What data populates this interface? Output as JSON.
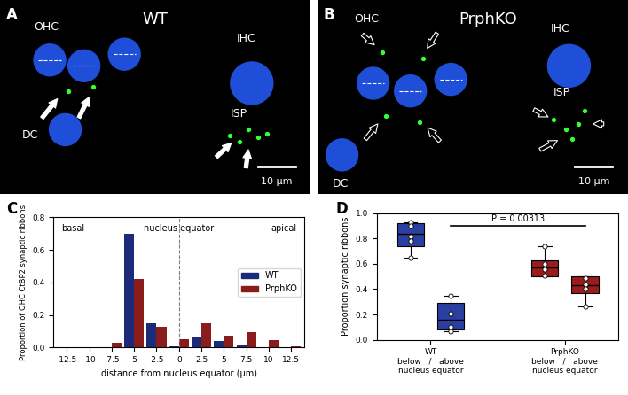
{
  "image_panels": [
    {
      "label": "A",
      "title": "WT",
      "cell_labels": [
        "OHC",
        "IHC",
        "DC",
        "ISP"
      ],
      "scale_bar": "10 μm"
    },
    {
      "label": "B",
      "title": "PrphKO",
      "cell_labels": [
        "OHC",
        "IHC",
        "DC",
        "ISP"
      ],
      "scale_bar": "10 μm"
    }
  ],
  "chart_data": [
    {
      "panel": "C",
      "type": "bar",
      "xlabel": "distance from nucleus equator (µm)",
      "ylabel": "Proportion of OHC CtBP2 synaptic ribbons",
      "annotations": [
        "basal",
        "nucleus equator",
        "apical"
      ],
      "x": [
        -12.5,
        -10,
        -7.5,
        -5,
        -2.5,
        0,
        2.5,
        5,
        7.5,
        10,
        12.5
      ],
      "series": [
        {
          "name": "WT",
          "color": "#1c2a7a",
          "values": [
            0,
            0,
            0,
            0.7,
            0.15,
            0.01,
            0.07,
            0.04,
            0.02,
            0,
            0
          ]
        },
        {
          "name": "PrphKO",
          "color": "#8b1c1c",
          "values": [
            0.003,
            0.003,
            0.03,
            0.42,
            0.13,
            0.05,
            0.15,
            0.075,
            0.095,
            0.045,
            0.01
          ]
        }
      ],
      "xlim": [
        -14,
        14
      ],
      "xticks": [
        -12.5,
        -10,
        -7.5,
        -5,
        -2.5,
        0,
        2.5,
        5,
        7.5,
        10,
        12.5
      ],
      "ylim": [
        0,
        0.8
      ],
      "yticks": [
        {
          "value": 0,
          "label": "0.0"
        },
        0.2,
        0.4,
        0.6,
        0.8
      ],
      "legend": "center right"
    },
    {
      "panel": "D",
      "type": "box",
      "ylabel": "Proportion synaptic ribbons",
      "categories": [
        "WT\nbelow   /   above\nnucleus equator",
        "PrphKO\nbelow   /   above\nnucleus equator"
      ],
      "groups": [
        {
          "color": "#2b3fa0",
          "boxes": [
            {
              "whislo": 0.65,
              "q1": 0.74,
              "med": 0.84,
              "q3": 0.92,
              "whishi": 0.93,
              "points": [
                0.93,
                0.9,
                0.82,
                0.78,
                0.65
              ]
            },
            {
              "whislo": 0.07,
              "q1": 0.08,
              "med": 0.16,
              "q3": 0.29,
              "whishi": 0.35,
              "points": [
                0.35,
                0.21,
                0.1,
                0.07
              ]
            }
          ]
        },
        {
          "color": "#9b1c1c",
          "boxes": [
            {
              "whislo": 0.5,
              "q1": 0.5,
              "med": 0.57,
              "q3": 0.63,
              "whishi": 0.74,
              "points": [
                0.74,
                0.6,
                0.56,
                0.51
              ]
            },
            {
              "whislo": 0.26,
              "q1": 0.37,
              "med": 0.43,
              "q3": 0.5,
              "whishi": 0.5,
              "points": [
                0.49,
                0.44,
                0.4,
                0.26
              ]
            }
          ]
        }
      ],
      "annotations": [
        "P = 0.00313"
      ],
      "ylim": [
        0,
        1
      ],
      "yticks": [
        {
          "value": 0,
          "label": "0.0"
        },
        0.2,
        0.4,
        0.6,
        0.8,
        {
          "value": 1,
          "label": "1.0"
        }
      ]
    }
  ]
}
